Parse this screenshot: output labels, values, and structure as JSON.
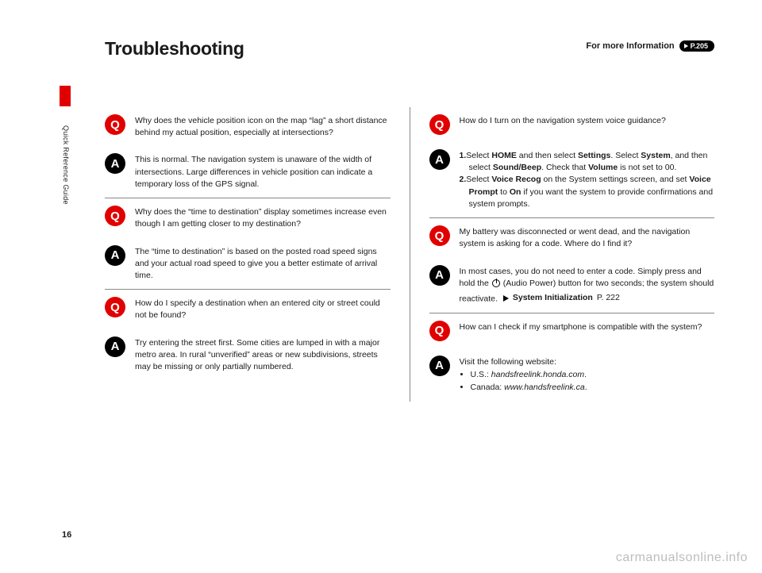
{
  "header": {
    "title": "Troubleshooting",
    "more_info_label": "For more Information",
    "badge_text": "P.205"
  },
  "side": {
    "label": "Quick Reference Guide",
    "page_number": "16"
  },
  "watermark": "carmanualsonline.info",
  "colors": {
    "accent": "#e10000",
    "text": "#1a1a1a",
    "divider": "#888888",
    "black": "#000000",
    "watermark": "#bdbdbd"
  },
  "left": {
    "q1": "Why does the vehicle position icon on the map “lag” a short distance behind my actual position, especially at intersections?",
    "a1": "This is normal. The navigation system is unaware of the width of intersections. Large differences in vehicle position can indicate a temporary loss of the GPS signal.",
    "q2": "Why does the “time to destination” display sometimes increase even though I am getting closer to my destination?",
    "a2": "The “time to destination” is based on the posted road speed signs and your actual road speed to give you a better estimate of arrival time.",
    "q3": "How do I specify a destination when an entered city or street could not be found?",
    "a3": "Try entering the street first. Some cities are lumped in with a major metro area. In rural “unverified” areas or new subdivisions, streets may be missing or only partially numbered."
  },
  "right": {
    "q1": "How do I turn on the navigation system voice guidance?",
    "a1_step1_pre": "Select ",
    "a1_step1_b1": "HOME",
    "a1_step1_mid1": " and then select ",
    "a1_step1_b2": "Settings",
    "a1_step1_mid2": ". Select ",
    "a1_step1_b3": "System",
    "a1_step1_mid3": ", and then select ",
    "a1_step1_b4": "Sound/Beep",
    "a1_step1_mid4": ". Check that ",
    "a1_step1_b5": "Volume",
    "a1_step1_end": " is not set to 00.",
    "a1_step2_pre": "Select ",
    "a1_step2_b1": "Voice Recog",
    "a1_step2_mid1": " on the System settings screen, and set ",
    "a1_step2_b2": "Voice Prompt",
    "a1_step2_mid2": " to ",
    "a1_step2_b3": "On",
    "a1_step2_end": " if you want the system to provide confirmations and system prompts.",
    "q2": "My battery was disconnected or went dead, and the navigation system is asking for a code. Where do I find it?",
    "a2_pre": "In most cases, you do not need to enter a code. Simply press and hold the ",
    "a2_post": " (Audio Power) button for two seconds; the system should reactivate.",
    "a2_ref_label": "System Initialization",
    "a2_ref_page": "P. 222",
    "q3": "How can I check if my smartphone is compatible with the system?",
    "a3_intro": "Visit the following website:",
    "a3_us_label": "U.S.: ",
    "a3_us_site": "handsfreelink.honda.com",
    "a3_ca_label": "Canada: ",
    "a3_ca_site": "www.handsfreelink.ca"
  }
}
